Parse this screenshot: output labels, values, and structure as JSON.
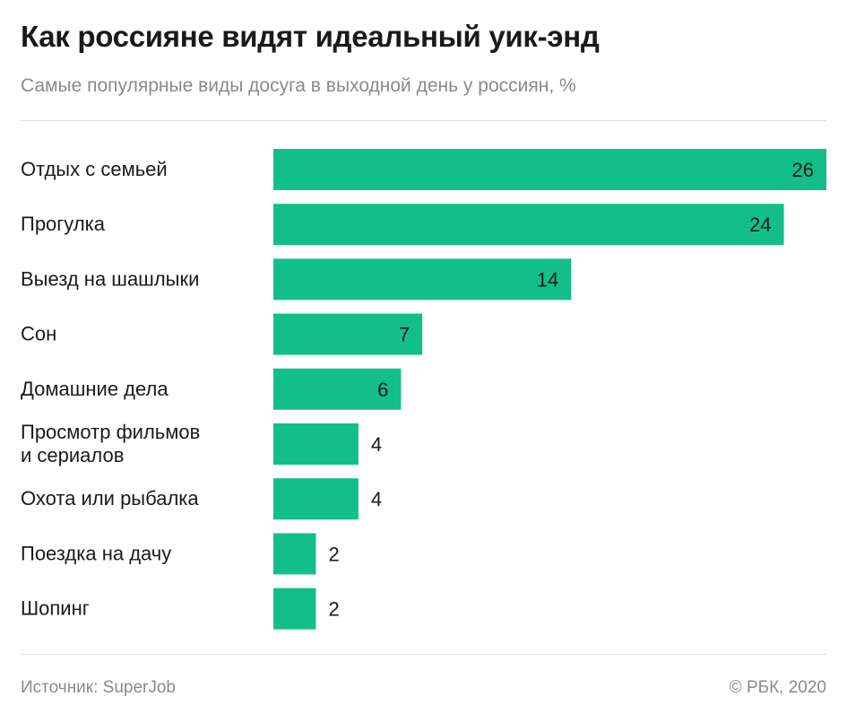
{
  "header": {
    "title": "Как россияне видят идеальный уик-энд",
    "subtitle": "Самые популярные виды досуга в выходной день у россиян, %"
  },
  "footer": {
    "source": "Источник: SuperJob",
    "copyright": "© РБК, 2020"
  },
  "colors": {
    "bar": "#12bf89",
    "text": "#1a1a1a",
    "muted": "#8a8a8a"
  },
  "chart_data": {
    "type": "bar",
    "orientation": "horizontal",
    "categories": [
      [
        "Отдых с семьей"
      ],
      [
        "Прогулка"
      ],
      [
        "Выезд на шашлыки"
      ],
      [
        "Сон"
      ],
      [
        "Домашние дела"
      ],
      [
        "Просмотр фильмов",
        "и сериалов"
      ],
      [
        "Охота или рыбалка"
      ],
      [
        "Поездка на дачу"
      ],
      [
        "Шопинг"
      ]
    ],
    "values": [
      26,
      24,
      14,
      7,
      6,
      4,
      4,
      2,
      2
    ],
    "title": "Как россияне видят идеальный уик-энд",
    "subtitle": "Самые популярные виды досуга в выходной день у россиян, %",
    "xlabel": "",
    "ylabel": "",
    "xlim": [
      0,
      26
    ],
    "grid": false,
    "legend": "none",
    "data_labels": true
  }
}
